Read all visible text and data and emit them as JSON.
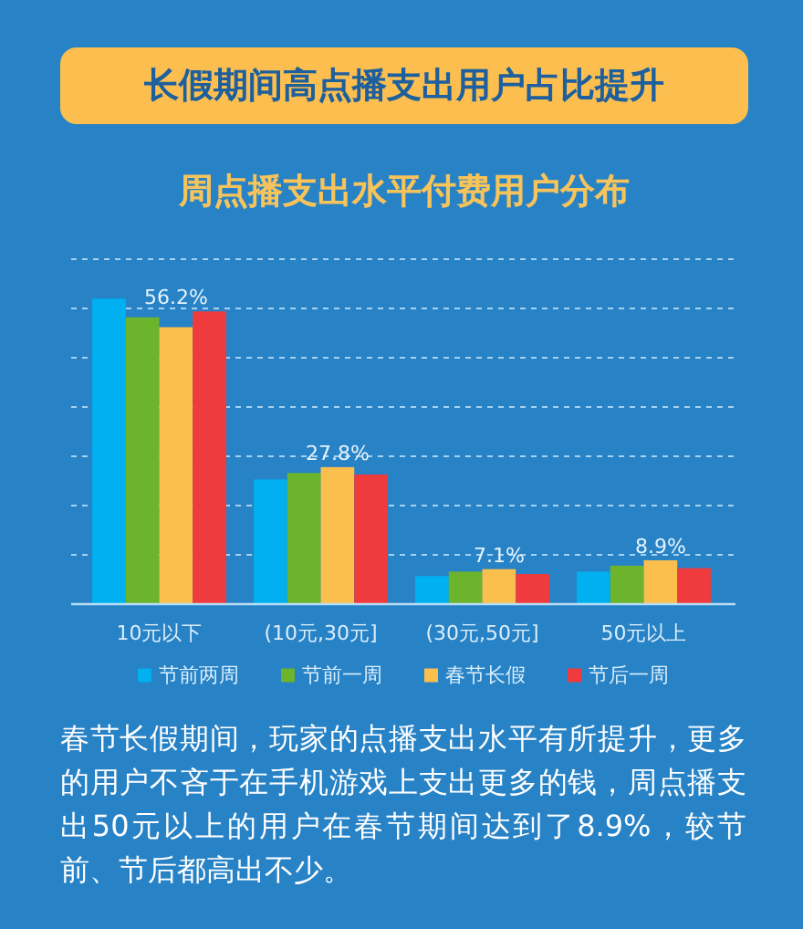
{
  "chart_data": {
    "type": "bar",
    "title": "长假期间高点播支出用户占比提升",
    "subtitle": "周点播支出水平付费用户分布",
    "categories": [
      "10元以下",
      "(10元,30元]",
      "(30元,50元]",
      "50元以上"
    ],
    "series": [
      {
        "name": "节前两周",
        "color": "#00b0f0",
        "values": [
          62.0,
          25.3,
          5.7,
          6.6
        ]
      },
      {
        "name": "节前一周",
        "color": "#6cb42c",
        "values": [
          58.2,
          26.6,
          6.6,
          7.8
        ]
      },
      {
        "name": "春节长假",
        "color": "#fbbf4e",
        "values": [
          56.2,
          27.8,
          7.1,
          8.9
        ],
        "value_labels": [
          "56.2%",
          "27.8%",
          "7.1%",
          "8.9%"
        ]
      },
      {
        "name": "节后一周",
        "color": "#ef3b3d",
        "values": [
          59.4,
          26.3,
          6.1,
          7.3
        ]
      }
    ],
    "ylim": [
      0,
      70
    ],
    "yticks": [
      {
        "value": 10,
        "label": null
      },
      {
        "value": 20,
        "label": null
      },
      {
        "value": 30,
        "label": null
      },
      {
        "value": 40,
        "label": null
      },
      {
        "value": 50,
        "label": null
      },
      {
        "value": 60,
        "label": null
      },
      {
        "value": 70,
        "label": null
      }
    ],
    "grid": "y",
    "tick_labels": "x",
    "legend": "bottom",
    "annotations": [
      "春节长假期间，玩家的点播支出水平有所提升，更多的用户不吝于在手机游戏上支出更多的钱，周点播支出50元以上的用户在春节期间达到了8.9%，较节前、节后都高出不少。"
    ]
  }
}
